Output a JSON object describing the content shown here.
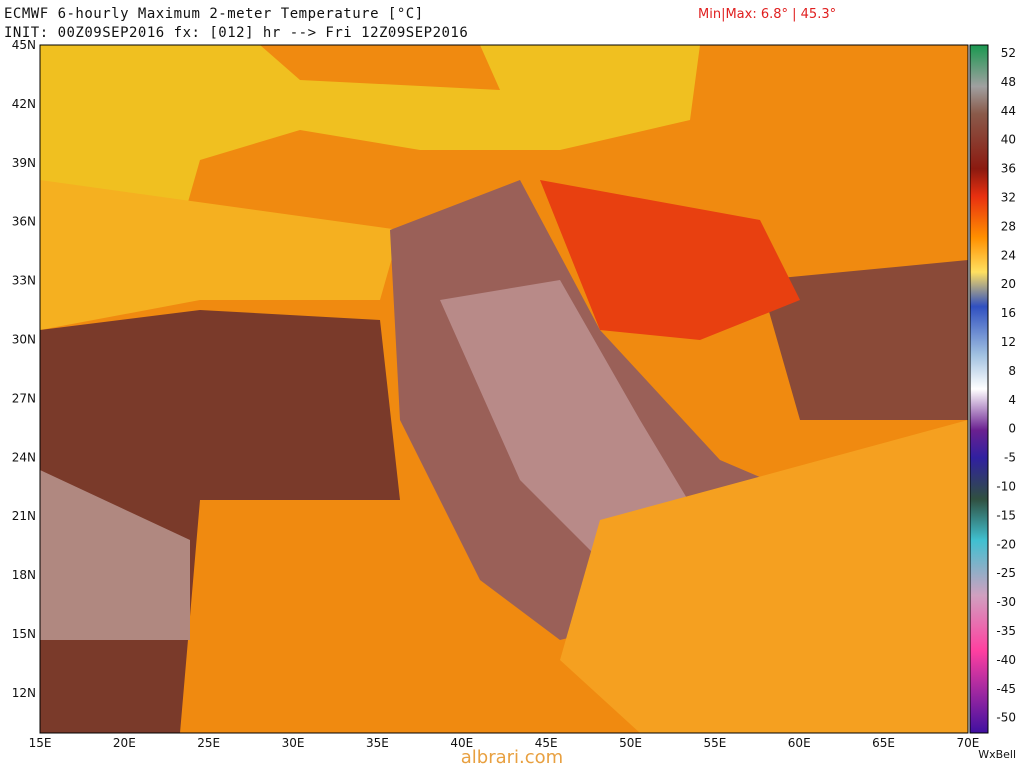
{
  "header": {
    "title": "ECMWF 6-hourly Maximum 2-meter Temperature [°C]",
    "init": "INIT: 00Z09SEP2016 fx: [012] hr --> Fri 12Z09SEP2016",
    "minmax": "Min|Max: 6.8° | 45.3°"
  },
  "map": {
    "lat_labels": [
      "45N",
      "42N",
      "39N",
      "36N",
      "33N",
      "30N",
      "27N",
      "24N",
      "21N",
      "18N",
      "15N",
      "12N"
    ],
    "lon_labels": [
      "15E",
      "20E",
      "25E",
      "30E",
      "35E",
      "40E",
      "45E",
      "50E",
      "55E",
      "60E",
      "65E",
      "70E"
    ]
  },
  "colorbar": {
    "labels": [
      "52",
      "48",
      "44",
      "40",
      "36",
      "32",
      "28",
      "24",
      "20",
      "16",
      "12",
      "8",
      "4",
      "0",
      "-5",
      "-10",
      "-15",
      "-20",
      "-25",
      "-30",
      "-35",
      "-40",
      "-45",
      "-50"
    ]
  },
  "footer": {
    "brand": "WxBell",
    "watermark": "albrari.com"
  }
}
